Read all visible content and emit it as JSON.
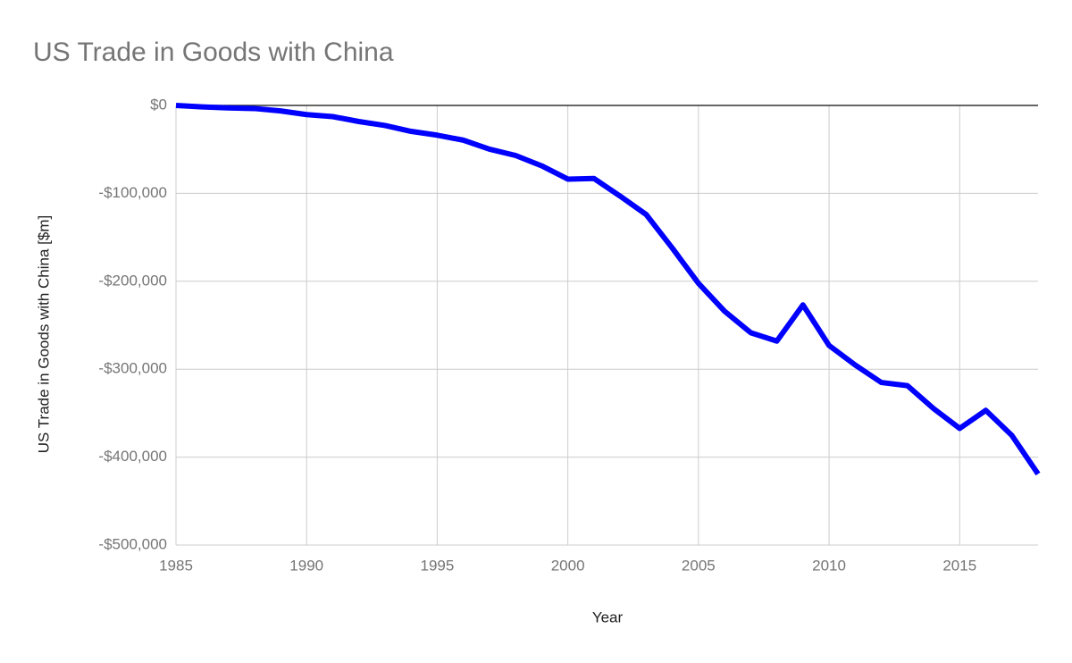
{
  "chart_data": {
    "type": "line",
    "title": "US Trade in Goods with China",
    "x_label": "Year",
    "y_label": "US Trade in Goods with China [$m]",
    "x": [
      1985,
      1986,
      1987,
      1988,
      1989,
      1990,
      1991,
      1992,
      1993,
      1994,
      1995,
      1996,
      1997,
      1998,
      1999,
      2000,
      2001,
      2002,
      2003,
      2004,
      2005,
      2006,
      2007,
      2008,
      2009,
      2010,
      2011,
      2012,
      2013,
      2014,
      2015,
      2016,
      2017,
      2018
    ],
    "values": [
      0,
      -1700,
      -2800,
      -3500,
      -6200,
      -10400,
      -12700,
      -18300,
      -22800,
      -29500,
      -33800,
      -39500,
      -49700,
      -56900,
      -68700,
      -83800,
      -83100,
      -103100,
      -124100,
      -162300,
      -202300,
      -234100,
      -258500,
      -268000,
      -226900,
      -273000,
      -295200,
      -315100,
      -318700,
      -344800,
      -367300,
      -346800,
      -375400,
      -419200
    ],
    "color": "#0000ff",
    "xlim": [
      1985,
      2018
    ],
    "xticks": [
      1985,
      1990,
      1995,
      2000,
      2005,
      2010,
      2015
    ],
    "ylim": [
      -500000,
      0
    ],
    "yticks": [
      {
        "value": 0,
        "label": "$0"
      },
      {
        "value": -100000,
        "label": "-$100,000"
      },
      {
        "value": -200000,
        "label": "-$200,000"
      },
      {
        "value": -300000,
        "label": "-$300,000"
      },
      {
        "value": -400000,
        "label": "-$400,000"
      },
      {
        "value": -500000,
        "label": "-$500,000"
      }
    ],
    "grid": true
  }
}
